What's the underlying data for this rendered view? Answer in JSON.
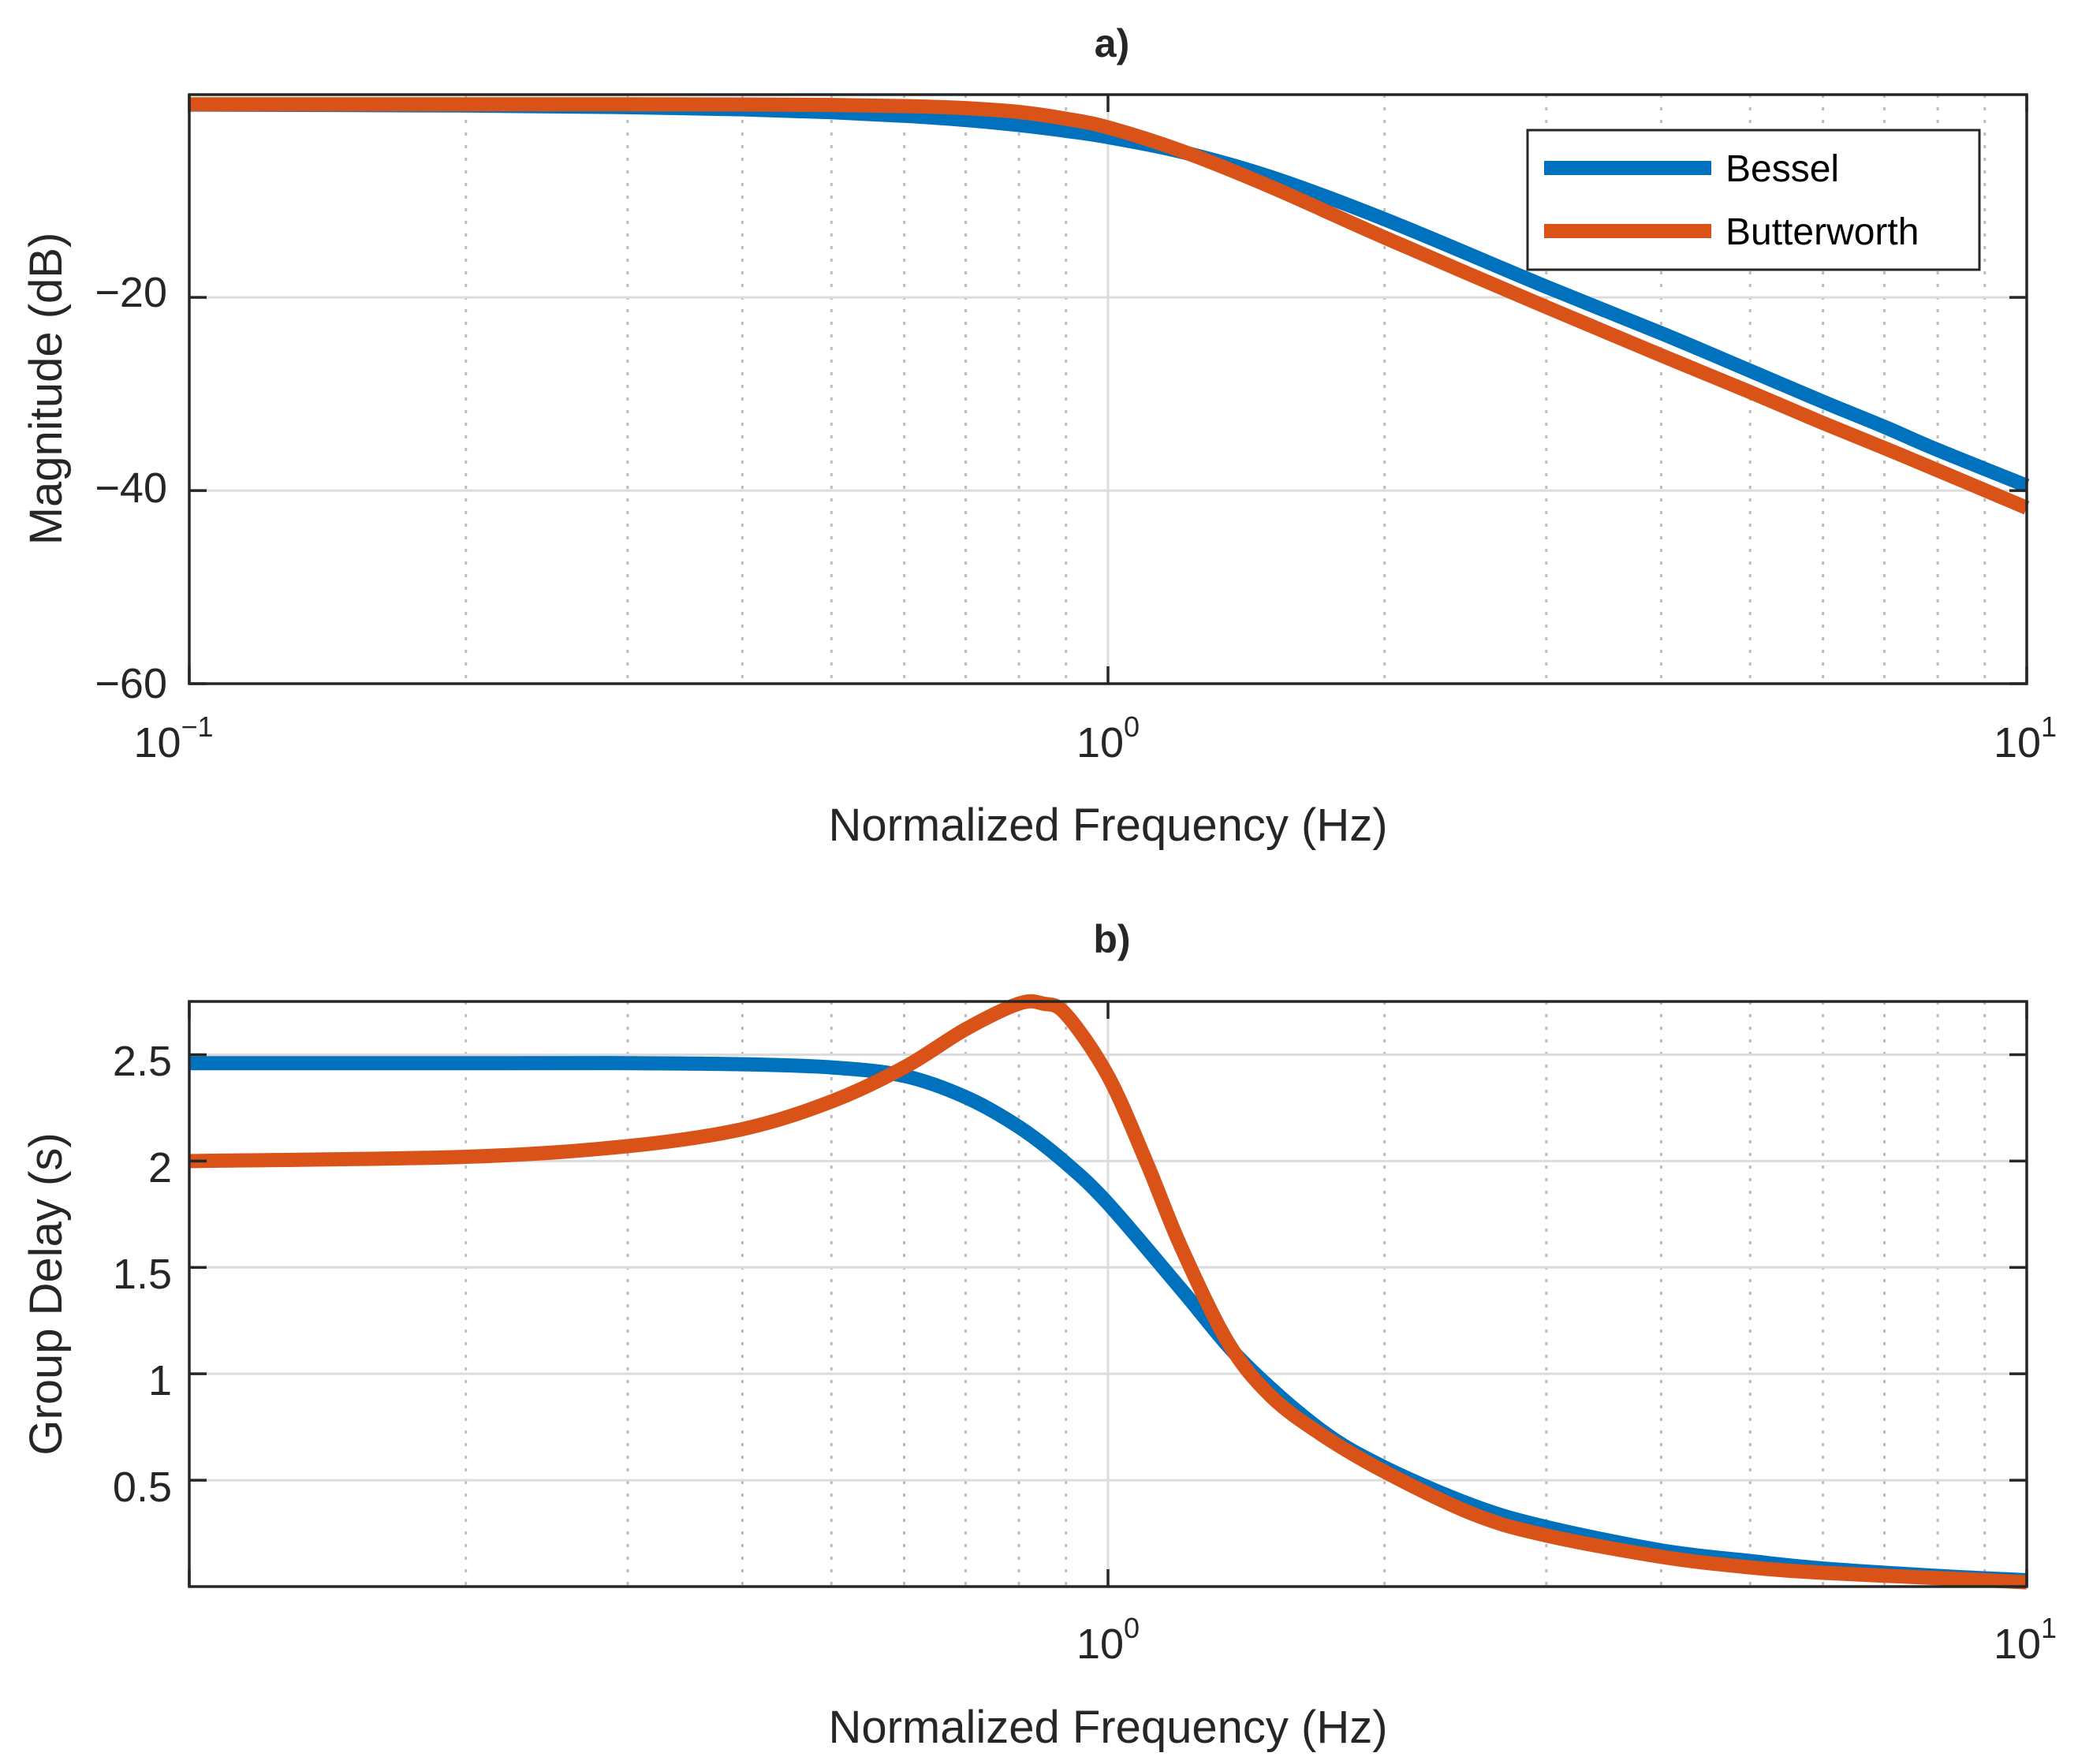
{
  "chart_data": [
    {
      "id": "a",
      "type": "line",
      "title": "a)",
      "xlabel": "Normalized Frequency (Hz)",
      "ylabel": "Magnitude (dB)",
      "xscale": "log",
      "xlim": [
        0.1,
        10
      ],
      "ylim": [
        -60,
        1
      ],
      "xticks": [
        {
          "base": "10",
          "exp": "−1"
        },
        {
          "base": "10",
          "exp": "0"
        },
        {
          "base": "10",
          "exp": "1"
        }
      ],
      "yticks": [
        "−60",
        "−40",
        "−20"
      ],
      "ytick_values": [
        -60,
        -40,
        -20
      ],
      "grid": true,
      "legend": {
        "position": "top-right",
        "entries": [
          "Bessel",
          "Butterworth"
        ]
      },
      "series": [
        {
          "name": "Bessel",
          "color": "#0072BD",
          "x": [
            0.1,
            0.2,
            0.3,
            0.4,
            0.5,
            0.6,
            0.7,
            0.8,
            0.9,
            1.0,
            1.2,
            1.5,
            2.0,
            3.0,
            4.0,
            5.0,
            6.0,
            7.0,
            8.0,
            10.0
          ],
          "y": [
            -0.03,
            -0.13,
            -0.3,
            -0.52,
            -0.82,
            -1.19,
            -1.63,
            -2.15,
            -2.75,
            -3.4,
            -4.9,
            -7.5,
            -11.9,
            -18.9,
            -23.7,
            -27.6,
            -30.8,
            -33.4,
            -35.8,
            -39.5
          ]
        },
        {
          "name": "Butterworth",
          "color": "#D95319",
          "x": [
            0.1,
            0.2,
            0.3,
            0.4,
            0.5,
            0.6,
            0.7,
            0.8,
            0.9,
            1.0,
            1.2,
            1.5,
            2.0,
            3.0,
            4.0,
            5.0,
            6.0,
            7.0,
            8.0,
            10.0
          ],
          "y": [
            0.0,
            0.0,
            0.0,
            -0.02,
            -0.07,
            -0.18,
            -0.4,
            -0.8,
            -1.5,
            -2.4,
            -4.8,
            -8.5,
            -13.8,
            -21.0,
            -26.0,
            -29.8,
            -33.0,
            -35.6,
            -37.9,
            -41.8
          ]
        }
      ]
    },
    {
      "id": "b",
      "type": "line",
      "title": "b)",
      "xlabel": "Normalized Frequency (Hz)",
      "ylabel": "Group Delay (s)",
      "xscale": "log",
      "xlim": [
        0.1,
        10
      ],
      "ylim": [
        0,
        2.75
      ],
      "xticks": [
        {
          "base": "10",
          "exp": "0"
        },
        {
          "base": "10",
          "exp": "1"
        }
      ],
      "yticks": [
        "0.5",
        "1",
        "1.5",
        "2",
        "2.5"
      ],
      "ytick_values": [
        0.5,
        1,
        1.5,
        2,
        2.5
      ],
      "grid": true,
      "series": [
        {
          "name": "Bessel",
          "color": "#0072BD",
          "x": [
            0.1,
            0.2,
            0.3,
            0.4,
            0.5,
            0.6,
            0.7,
            0.8,
            0.9,
            1.0,
            1.2,
            1.4,
            1.7,
            2.0,
            2.5,
            3.0,
            4.0,
            5.0,
            6.0,
            8.0,
            10.0
          ],
          "y": [
            2.46,
            2.46,
            2.46,
            2.455,
            2.44,
            2.4,
            2.3,
            2.16,
            1.99,
            1.8,
            1.4,
            1.06,
            0.74,
            0.56,
            0.38,
            0.28,
            0.17,
            0.12,
            0.085,
            0.05,
            0.03
          ]
        },
        {
          "name": "Butterworth",
          "color": "#D95319",
          "x": [
            0.1,
            0.2,
            0.3,
            0.4,
            0.5,
            0.6,
            0.7,
            0.8,
            0.85,
            0.9,
            1.0,
            1.1,
            1.2,
            1.35,
            1.5,
            1.7,
            2.0,
            2.5,
            3.0,
            4.0,
            5.0,
            6.0,
            8.0,
            10.0
          ],
          "y": [
            2.0,
            2.02,
            2.07,
            2.15,
            2.28,
            2.44,
            2.62,
            2.74,
            2.74,
            2.69,
            2.4,
            2.0,
            1.6,
            1.15,
            0.9,
            0.72,
            0.54,
            0.34,
            0.24,
            0.14,
            0.09,
            0.065,
            0.04,
            0.02
          ]
        }
      ]
    }
  ]
}
